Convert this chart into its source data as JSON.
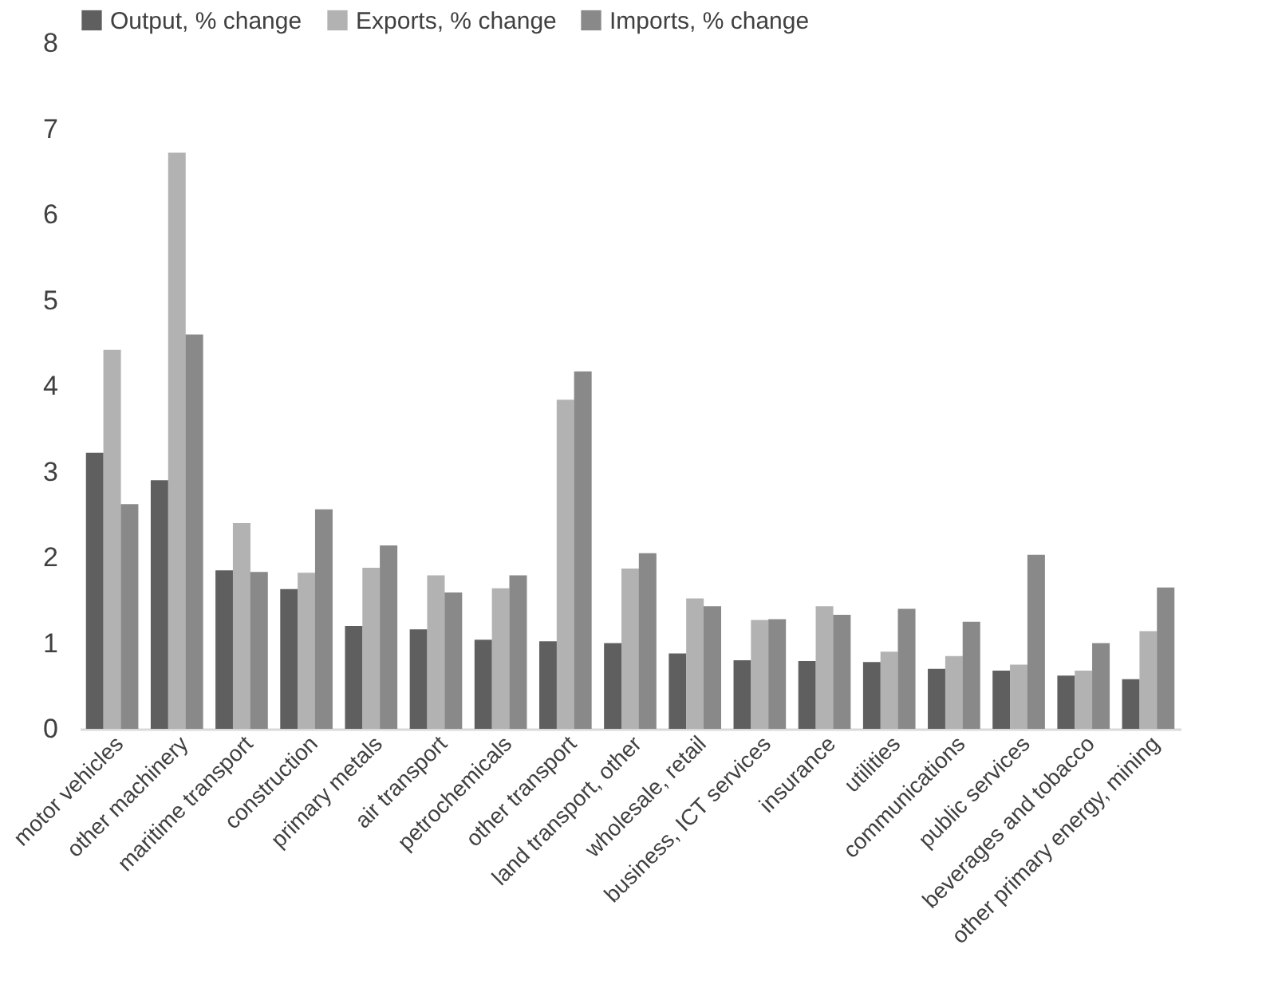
{
  "chart_data": {
    "type": "bar",
    "categories": [
      "motor vehicles",
      "other machinery",
      "maritime transport",
      "construction",
      "primary metals",
      "air transport",
      "petrochemicals",
      "other transport",
      "land transport, other",
      "wholesale, retail",
      "business, ICT services",
      "insurance",
      "utilities",
      "communications",
      "public services",
      "beverages and tobacco",
      "other primary energy, mining"
    ],
    "series": [
      {
        "name": "Output, % change",
        "color": "#5f5f5f",
        "values": [
          3.22,
          2.9,
          1.85,
          1.63,
          1.2,
          1.16,
          1.04,
          1.02,
          1.0,
          0.88,
          0.8,
          0.79,
          0.78,
          0.7,
          0.68,
          0.62,
          0.58
        ]
      },
      {
        "name": "Exports, % change",
        "color": "#b2b2b2",
        "values": [
          4.42,
          6.72,
          2.4,
          1.82,
          1.88,
          1.79,
          1.64,
          3.84,
          1.87,
          1.52,
          1.27,
          1.43,
          0.9,
          0.85,
          0.75,
          0.68,
          1.14
        ]
      },
      {
        "name": "Imports, % change",
        "color": "#898989",
        "values": [
          2.62,
          4.6,
          1.83,
          2.56,
          2.14,
          1.59,
          1.79,
          4.17,
          2.05,
          1.43,
          1.28,
          1.33,
          1.4,
          1.25,
          2.03,
          1.0,
          1.65
        ]
      }
    ],
    "ylim": [
      0,
      8
    ],
    "yticks": [
      0,
      1,
      2,
      3,
      4,
      5,
      6,
      7,
      8
    ],
    "grid": false,
    "legend": "top"
  }
}
